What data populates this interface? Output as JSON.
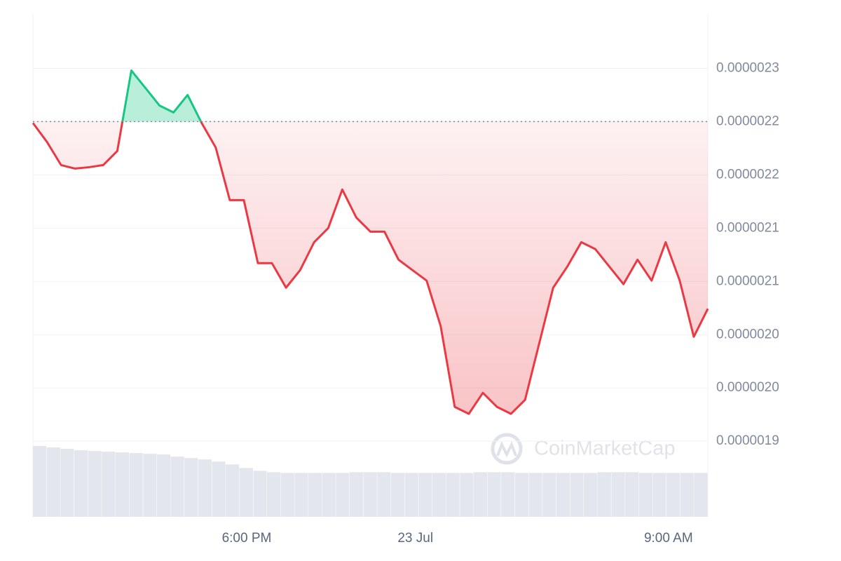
{
  "chart_data": {
    "type": "line",
    "watermark": "CoinMarketCap",
    "values": [
      2.2487e-06,
      2.2309e-06,
      2.2092e-06,
      2.2059e-06,
      2.2072e-06,
      2.2092e-06,
      2.2224e-06,
      2.298e-06,
      2.2816e-06,
      2.2651e-06,
      2.2586e-06,
      2.275e-06,
      2.2487e-06,
      2.2257e-06,
      2.1763e-06,
      2.1763e-06,
      2.1171e-06,
      2.1171e-06,
      2.0941e-06,
      2.1105e-06,
      2.1368e-06,
      2.15e-06,
      2.1862e-06,
      2.1599e-06,
      2.1467e-06,
      2.1467e-06,
      2.1204e-06,
      2.1105e-06,
      2.1007e-06,
      2.0579e-06,
      1.9822e-06,
      1.9757e-06,
      1.9954e-06,
      1.9822e-06,
      1.9757e-06,
      1.9888e-06,
      2.0414e-06,
      2.0941e-06,
      2.1138e-06,
      2.1368e-06,
      2.1303e-06,
      2.1138e-06,
      2.0974e-06,
      2.1204e-06,
      2.1007e-06,
      2.1368e-06,
      2.1007e-06,
      2.048e-06,
      2.0743e-06
    ],
    "volume": [
      100,
      98,
      96,
      94,
      93,
      92,
      91,
      90,
      89,
      88,
      85,
      83,
      81,
      78,
      74,
      69,
      65,
      63,
      62,
      62,
      62,
      62,
      62,
      63,
      63,
      63,
      62,
      62,
      62,
      62,
      62,
      62,
      63,
      63,
      63,
      62,
      62,
      62,
      62,
      62,
      62,
      63,
      63,
      63,
      62,
      62,
      62,
      62,
      62
    ],
    "vlim": [
      0,
      100
    ],
    "baseline": 2.25e-06,
    "up_color": "#16c784",
    "down_color": "#ea3943",
    "volume_color": "#e3e6ec",
    "xlim": [
      0,
      48
    ],
    "xticks": [
      {
        "value": 15.2,
        "label": "6:00 PM"
      },
      {
        "value": 27.2,
        "label": "23 Jul"
      },
      {
        "value": 45.2,
        "label": "9:00 AM"
      }
    ],
    "ylim": [
      1.879e-06,
      2.351e-06
    ],
    "yticks": [
      {
        "value": 2.3e-06,
        "label": "0.0000023"
      },
      {
        "value": 2.25e-06,
        "label": "0.0000022"
      },
      {
        "value": 2.2e-06,
        "label": "0.0000022"
      },
      {
        "value": 2.15e-06,
        "label": "0.0000021"
      },
      {
        "value": 2.1e-06,
        "label": "0.0000021"
      },
      {
        "value": 2.05e-06,
        "label": "0.0000020"
      },
      {
        "value": 2e-06,
        "label": "0.0000020"
      },
      {
        "value": 1.95e-06,
        "label": "0.0000019"
      }
    ],
    "grid": true
  }
}
